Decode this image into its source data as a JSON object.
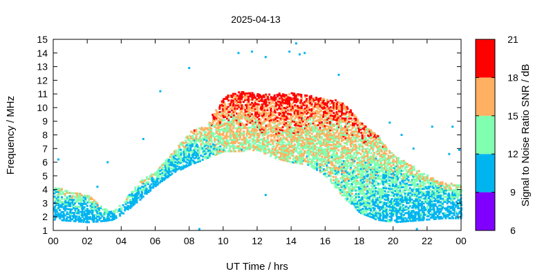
{
  "chart_data": {
    "type": "scatter",
    "title": "2025-04-13",
    "xlabel": "UT Time / hrs",
    "ylabel": "Frequency / MHz",
    "xlim": [
      0,
      24
    ],
    "ylim": [
      1,
      15
    ],
    "x_ticks": [
      "00",
      "02",
      "04",
      "06",
      "08",
      "10",
      "12",
      "14",
      "16",
      "18",
      "20",
      "22",
      "00"
    ],
    "y_ticks": [
      "1",
      "2",
      "3",
      "4",
      "5",
      "6",
      "7",
      "8",
      "9",
      "10",
      "11",
      "12",
      "13",
      "14",
      "15"
    ],
    "colorbar": {
      "label": "Signal to Noise Ratio SNR / dB",
      "range": [
        6,
        21
      ],
      "ticks": [
        "6",
        "9",
        "12",
        "15",
        "18",
        "21"
      ],
      "bands": [
        {
          "from": 6,
          "to": 9,
          "color": "#8000ff"
        },
        {
          "from": 9,
          "to": 12,
          "color": "#00b4f0"
        },
        {
          "from": 12,
          "to": 15,
          "color": "#80ffb0"
        },
        {
          "from": 15,
          "to": 18,
          "color": "#ffb060"
        },
        {
          "from": 18,
          "to": 21,
          "color": "#ff0000"
        }
      ]
    },
    "envelope": [
      {
        "hour": 0.0,
        "fmin": 1.8,
        "fmax": 4.3
      },
      {
        "hour": 1.0,
        "fmin": 1.7,
        "fmax": 3.8
      },
      {
        "hour": 2.0,
        "fmin": 1.6,
        "fmax": 3.6
      },
      {
        "hour": 3.0,
        "fmin": 1.7,
        "fmax": 2.6
      },
      {
        "hour": 3.5,
        "fmin": 1.8,
        "fmax": 2.4
      },
      {
        "hour": 4.0,
        "fmin": 2.2,
        "fmax": 3.0
      },
      {
        "hour": 5.0,
        "fmin": 3.2,
        "fmax": 4.6
      },
      {
        "hour": 6.0,
        "fmin": 4.3,
        "fmax": 5.3
      },
      {
        "hour": 7.0,
        "fmin": 5.2,
        "fmax": 6.8
      },
      {
        "hour": 8.0,
        "fmin": 5.8,
        "fmax": 8.2
      },
      {
        "hour": 9.0,
        "fmin": 6.3,
        "fmax": 8.8
      },
      {
        "hour": 10.0,
        "fmin": 6.8,
        "fmax": 10.8
      },
      {
        "hour": 11.0,
        "fmin": 6.8,
        "fmax": 11.2
      },
      {
        "hour": 12.0,
        "fmin": 6.9,
        "fmax": 11.0
      },
      {
        "hour": 13.0,
        "fmin": 6.3,
        "fmax": 11.0
      },
      {
        "hour": 14.0,
        "fmin": 6.0,
        "fmax": 11.1
      },
      {
        "hour": 15.0,
        "fmin": 5.8,
        "fmax": 10.9
      },
      {
        "hour": 16.0,
        "fmin": 5.0,
        "fmax": 10.6
      },
      {
        "hour": 17.0,
        "fmin": 3.5,
        "fmax": 10.5
      },
      {
        "hour": 18.0,
        "fmin": 2.3,
        "fmax": 9.0
      },
      {
        "hour": 19.0,
        "fmin": 1.8,
        "fmax": 8.0
      },
      {
        "hour": 20.0,
        "fmin": 1.6,
        "fmax": 6.5
      },
      {
        "hour": 21.0,
        "fmin": 1.7,
        "fmax": 5.8
      },
      {
        "hour": 22.0,
        "fmin": 1.8,
        "fmax": 5.0
      },
      {
        "hour": 23.0,
        "fmin": 1.9,
        "fmax": 4.5
      },
      {
        "hour": 24.0,
        "fmin": 1.9,
        "fmax": 4.3
      }
    ],
    "snr_profile": [
      {
        "hour": 0,
        "snr": 11
      },
      {
        "hour": 4,
        "snr": 11
      },
      {
        "hour": 8,
        "snr": 12
      },
      {
        "hour": 10,
        "snr": 16
      },
      {
        "hour": 13,
        "snr": 17
      },
      {
        "hour": 17,
        "snr": 15
      },
      {
        "hour": 20,
        "snr": 12
      },
      {
        "hour": 24,
        "snr": 11
      }
    ],
    "outliers": [
      {
        "hour": 0.3,
        "freq": 6.2,
        "snr": 10
      },
      {
        "hour": 3.2,
        "freq": 6.0,
        "snr": 10
      },
      {
        "hour": 2.6,
        "freq": 4.2,
        "snr": 10
      },
      {
        "hour": 5.3,
        "freq": 7.7,
        "snr": 10
      },
      {
        "hour": 6.3,
        "freq": 11.2,
        "snr": 10
      },
      {
        "hour": 8.0,
        "freq": 12.9,
        "snr": 10
      },
      {
        "hour": 8.6,
        "freq": 1.1,
        "snr": 10
      },
      {
        "hour": 10.9,
        "freq": 14.0,
        "snr": 10
      },
      {
        "hour": 11.7,
        "freq": 14.1,
        "snr": 10
      },
      {
        "hour": 12.5,
        "freq": 13.7,
        "snr": 10
      },
      {
        "hour": 12.5,
        "freq": 3.6,
        "snr": 10
      },
      {
        "hour": 13.9,
        "freq": 14.1,
        "snr": 10
      },
      {
        "hour": 14.3,
        "freq": 14.7,
        "snr": 10
      },
      {
        "hour": 14.5,
        "freq": 13.9,
        "snr": 10
      },
      {
        "hour": 14.8,
        "freq": 14.0,
        "snr": 10
      },
      {
        "hour": 16.8,
        "freq": 12.4,
        "snr": 10
      },
      {
        "hour": 19.8,
        "freq": 8.9,
        "snr": 10
      },
      {
        "hour": 20.5,
        "freq": 8.0,
        "snr": 10
      },
      {
        "hour": 21.2,
        "freq": 7.0,
        "snr": 10
      },
      {
        "hour": 22.3,
        "freq": 8.6,
        "snr": 10
      },
      {
        "hour": 23.5,
        "freq": 8.6,
        "snr": 10
      },
      {
        "hour": 23.9,
        "freq": 6.9,
        "snr": 10
      },
      {
        "hour": 23.3,
        "freq": 6.6,
        "snr": 10
      },
      {
        "hour": 21.4,
        "freq": 1.1,
        "snr": 10
      }
    ]
  }
}
